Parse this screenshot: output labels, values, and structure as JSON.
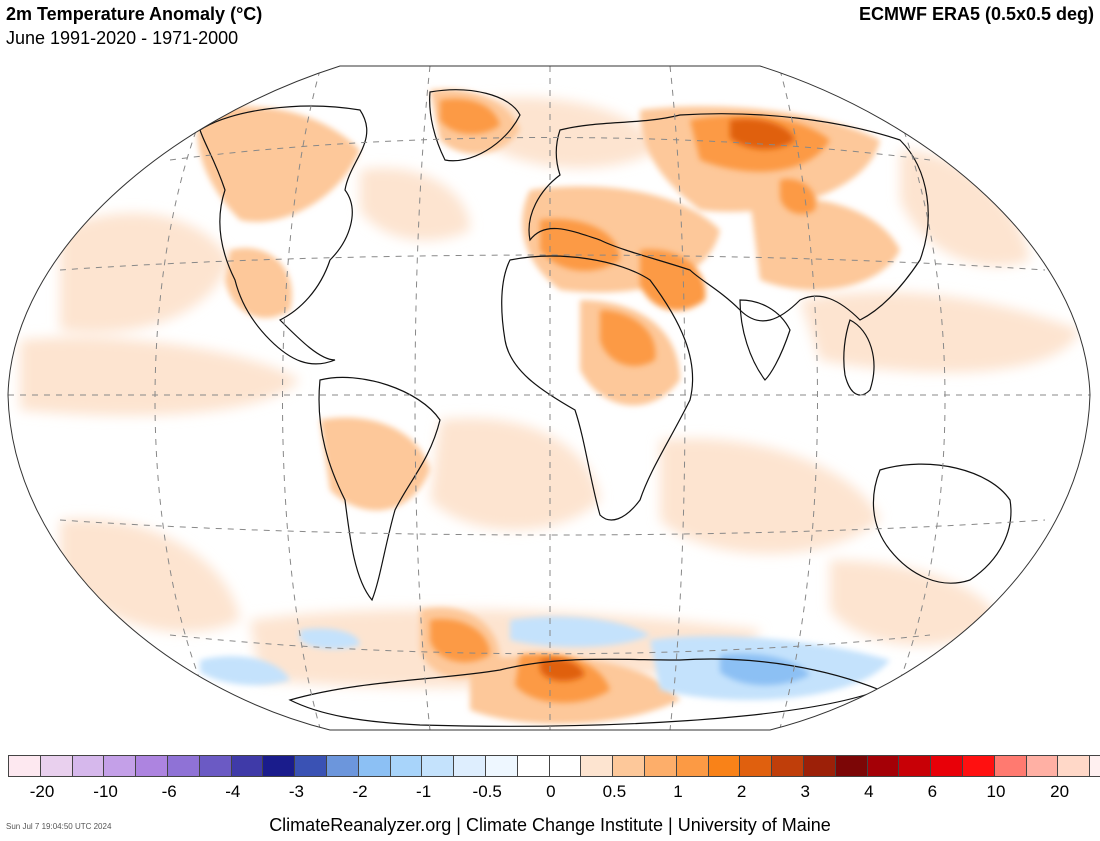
{
  "header": {
    "title": "2m Temperature Anomaly (°C)",
    "subtitle": "June 1991-2020 - 1971-2000",
    "source": "ECMWF ERA5 (0.5x0.5 deg)"
  },
  "colorbar": {
    "colors": [
      "#fde8f0",
      "#e9d0ee",
      "#d6b8ec",
      "#c4a0e8",
      "#ad84e0",
      "#8f72d6",
      "#6b5ac4",
      "#3f3aa8",
      "#1a1c8c",
      "#3a52b4",
      "#6c96dc",
      "#8cc0f4",
      "#a8d4fa",
      "#c4e2fc",
      "#deeefe",
      "#eef7ff",
      "#ffffff",
      "#ffffff",
      "#fde4d0",
      "#fdc89a",
      "#fdae6a",
      "#fc9a44",
      "#f98218",
      "#e0600e",
      "#c03e0a",
      "#9c2008",
      "#7c0606",
      "#a40006",
      "#c80006",
      "#e80008",
      "#ff1010",
      "#ff7a70",
      "#ffb0a4",
      "#ffd8c8",
      "#fff0f0"
    ],
    "tick_labels": [
      "-20",
      "-10",
      "-6",
      "-4",
      "-3",
      "-2",
      "-1",
      "-0.5",
      "0",
      "0.5",
      "1",
      "2",
      "3",
      "4",
      "6",
      "10",
      "20"
    ]
  },
  "footer": {
    "timestamp": "Sun Jul  7 19:04:50 UTC 2024",
    "credit": "ClimateReanalyzer.org | Climate Change Institute | University of Maine"
  },
  "map": {
    "projection": "Winkel Tripel",
    "graticule": "dashed",
    "anomaly_palette": {
      "pale_orange": "#fde4d0",
      "light_orange": "#fdc89a",
      "orange": "#fc9a44",
      "deep_orange": "#e0600e",
      "brown_red": "#9c2008",
      "light_blue": "#c4e2fc",
      "blue": "#8cc0f4",
      "mid_blue": "#6c96dc"
    }
  }
}
